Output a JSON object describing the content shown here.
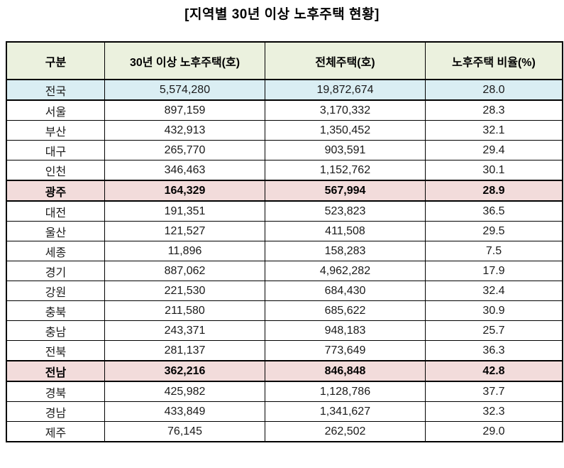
{
  "title": "[지역별 30년 이상 노후주택 현황]",
  "colors": {
    "header_bg": "#EBF1DE",
    "total_row_bg": "#DAEEF3",
    "highlight_row_bg": "#F2DCDB",
    "border": "#000000",
    "text": "#1a1a1a"
  },
  "chart_data": {
    "type": "table",
    "title": "[지역별 30년 이상 노후주택 현황]",
    "columns": [
      "구분",
      "30년 이상 노후주택(호)",
      "전체주택(호)",
      "노후주택 비율(%)"
    ],
    "rows": [
      {
        "region": "전국",
        "old_houses": "5,574,280",
        "total_houses": "19,872,674",
        "ratio": "28.0",
        "style": "total"
      },
      {
        "region": "서울",
        "old_houses": "897,159",
        "total_houses": "3,170,332",
        "ratio": "28.3",
        "style": ""
      },
      {
        "region": "부산",
        "old_houses": "432,913",
        "total_houses": "1,350,452",
        "ratio": "32.1",
        "style": ""
      },
      {
        "region": "대구",
        "old_houses": "265,770",
        "total_houses": "903,591",
        "ratio": "29.4",
        "style": ""
      },
      {
        "region": "인천",
        "old_houses": "346,463",
        "total_houses": "1,152,762",
        "ratio": "30.1",
        "style": ""
      },
      {
        "region": "광주",
        "old_houses": "164,329",
        "total_houses": "567,994",
        "ratio": "28.9",
        "style": "highlight"
      },
      {
        "region": "대전",
        "old_houses": "191,351",
        "total_houses": "523,823",
        "ratio": "36.5",
        "style": ""
      },
      {
        "region": "울산",
        "old_houses": "121,527",
        "total_houses": "411,508",
        "ratio": "29.5",
        "style": ""
      },
      {
        "region": "세종",
        "old_houses": "11,896",
        "total_houses": "158,283",
        "ratio": "7.5",
        "style": ""
      },
      {
        "region": "경기",
        "old_houses": "887,062",
        "total_houses": "4,962,282",
        "ratio": "17.9",
        "style": ""
      },
      {
        "region": "강원",
        "old_houses": "221,530",
        "total_houses": "684,430",
        "ratio": "32.4",
        "style": ""
      },
      {
        "region": "충북",
        "old_houses": "211,580",
        "total_houses": "685,622",
        "ratio": "30.9",
        "style": ""
      },
      {
        "region": "충남",
        "old_houses": "243,371",
        "total_houses": "948,183",
        "ratio": "25.7",
        "style": ""
      },
      {
        "region": "전북",
        "old_houses": "281,137",
        "total_houses": "773,649",
        "ratio": "36.3",
        "style": ""
      },
      {
        "region": "전남",
        "old_houses": "362,216",
        "total_houses": "846,848",
        "ratio": "42.8",
        "style": "highlight"
      },
      {
        "region": "경북",
        "old_houses": "425,982",
        "total_houses": "1,128,786",
        "ratio": "37.7",
        "style": ""
      },
      {
        "region": "경남",
        "old_houses": "433,849",
        "total_houses": "1,341,627",
        "ratio": "32.3",
        "style": ""
      },
      {
        "region": "제주",
        "old_houses": "76,145",
        "total_houses": "262,502",
        "ratio": "29.0",
        "style": ""
      }
    ]
  }
}
